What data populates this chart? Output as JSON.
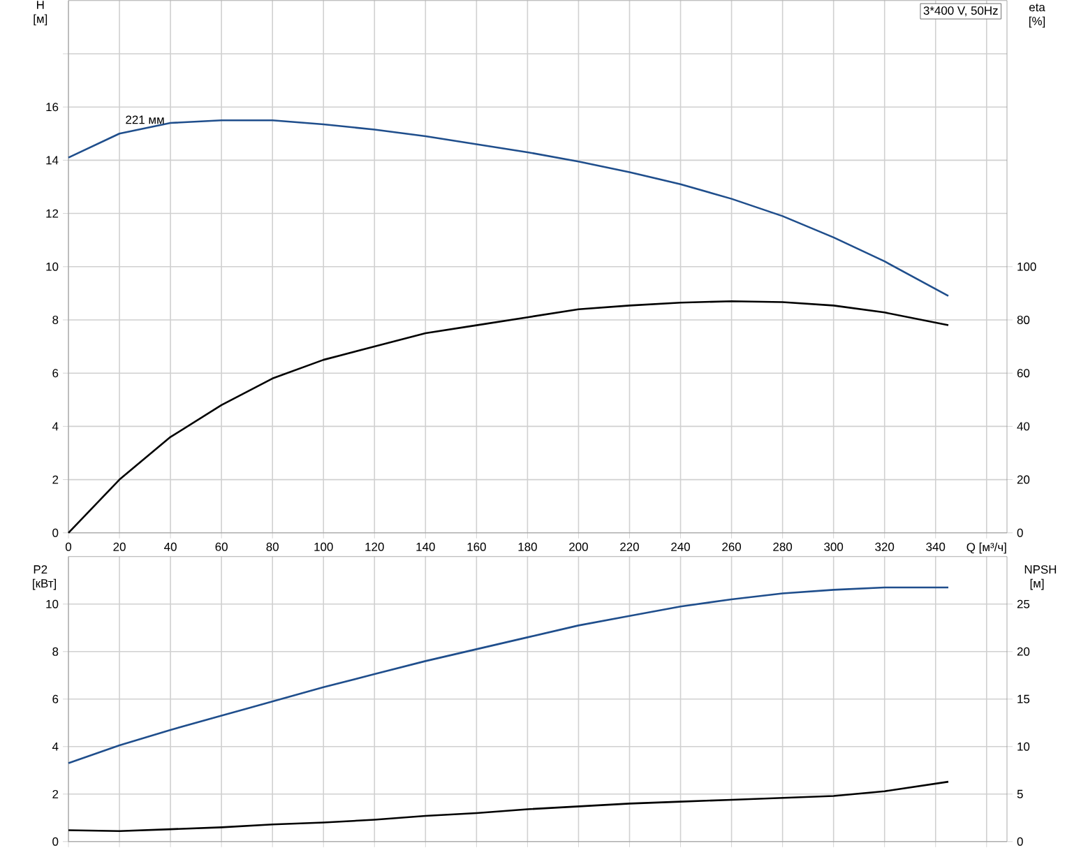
{
  "chart_data": [
    {
      "type": "line",
      "title": "3*400 V, 50Hz",
      "xlabel": "Q [м³/ч]",
      "ylabel": "H [м]",
      "y2label": "eta [%]",
      "x": [
        0,
        20,
        40,
        60,
        80,
        100,
        120,
        140,
        160,
        180,
        200,
        220,
        240,
        260,
        280,
        300,
        320,
        345
      ],
      "series": [
        {
          "color": "#1f4e8c",
          "values": [
            14.1,
            15.0,
            15.4,
            15.5,
            15.5,
            15.35,
            15.15,
            14.9,
            14.6,
            14.3,
            13.95,
            13.55,
            13.1,
            12.55,
            11.9,
            11.1,
            10.2,
            8.9
          ]
        },
        {
          "color": "#000000",
          "axis": "y2",
          "values": [
            0,
            20,
            36,
            48,
            58,
            65,
            70,
            75,
            78,
            81,
            84,
            85.4,
            86.5,
            87,
            86.7,
            85.4,
            82.8,
            78
          ]
        }
      ],
      "xlim": [
        0,
        368
      ],
      "ylim": [
        0,
        20
      ],
      "y2lim": [
        0,
        200
      ],
      "xticks": [
        0,
        20,
        40,
        60,
        80,
        100,
        120,
        140,
        160,
        180,
        200,
        220,
        240,
        260,
        280,
        300,
        320,
        340,
        {
          "value": 360,
          "label": null
        }
      ],
      "yticks": [
        0,
        2,
        4,
        6,
        8,
        10,
        12,
        14,
        16,
        {
          "value": 18,
          "label": null
        }
      ],
      "y2ticks": [
        0,
        20,
        40,
        60,
        80,
        100
      ],
      "grid": true,
      "annotations": [
        {
          "text": "221 мм",
          "x": 30,
          "y": 15.2
        }
      ]
    },
    {
      "type": "line",
      "ylabel": "P2 [кВт]",
      "y2label": "NPSH [м]",
      "x": [
        0,
        20,
        40,
        60,
        80,
        100,
        120,
        140,
        160,
        180,
        200,
        220,
        240,
        260,
        280,
        300,
        320,
        345
      ],
      "series": [
        {
          "color": "#1f4e8c",
          "values": [
            3.3,
            4.05,
            4.7,
            5.3,
            5.9,
            6.5,
            7.05,
            7.6,
            8.1,
            8.6,
            9.1,
            9.5,
            9.9,
            10.2,
            10.45,
            10.6,
            10.7,
            10.7
          ]
        },
        {
          "color": "#000000",
          "axis": "y2",
          "values": [
            1.2,
            1.1,
            1.3,
            1.5,
            1.8,
            2.0,
            2.3,
            2.7,
            3.0,
            3.4,
            3.7,
            4.0,
            4.2,
            4.4,
            4.6,
            4.8,
            5.3,
            6.3
          ]
        }
      ],
      "xlim": [
        0,
        368
      ],
      "ylim": [
        0,
        12
      ],
      "y2lim": [
        0,
        30
      ],
      "xticks": [
        0,
        20,
        40,
        60,
        80,
        100,
        120,
        140,
        160,
        180,
        200,
        220,
        240,
        260,
        280,
        300,
        320,
        340,
        360
      ],
      "yticks": [
        0,
        2,
        4,
        6,
        8,
        10
      ],
      "y2ticks": [
        0,
        5,
        10,
        15,
        20,
        25
      ],
      "grid": true,
      "tick_labels": "y"
    }
  ]
}
